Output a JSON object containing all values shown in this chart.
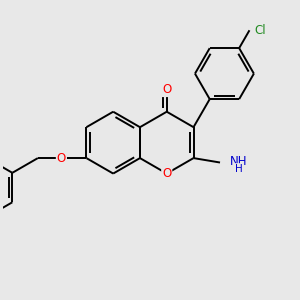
{
  "bg_color": "#e8e8e8",
  "bond_color": "#000000",
  "bond_width": 1.4,
  "atom_colors": {
    "O": "#ff0000",
    "N": "#0000cc",
    "Cl": "#228B22"
  },
  "font_size": 8.5
}
